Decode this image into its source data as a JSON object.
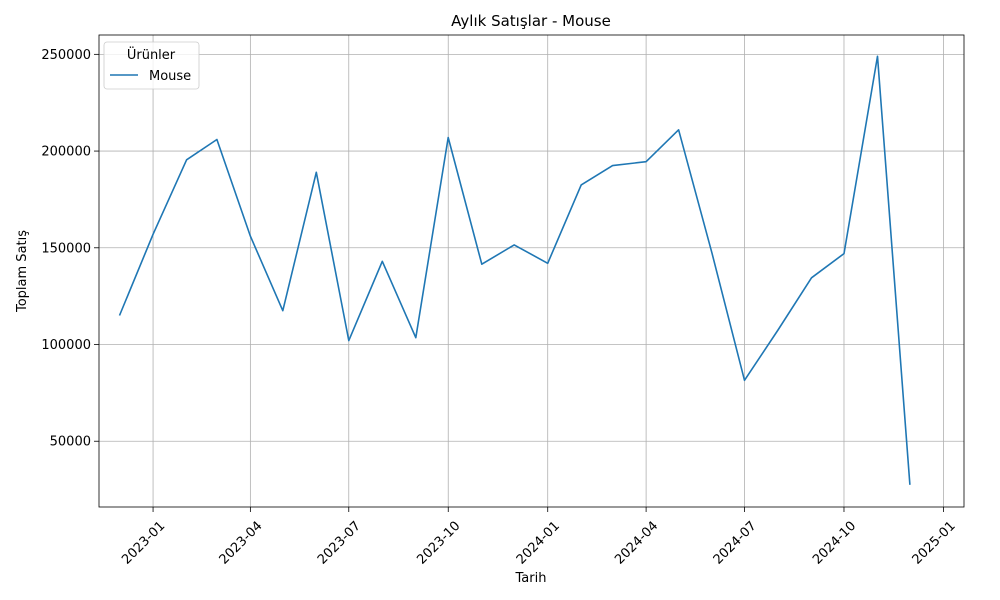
{
  "chart_data": {
    "type": "line",
    "title": "Aylık Satışlar - Mouse",
    "xlabel": "Tarih",
    "ylabel": "Toplam Satış",
    "grid": true,
    "legend": {
      "title": "Ürünler",
      "placement": "top-left"
    },
    "x_ticks": [
      "2023-01",
      "2023-04",
      "2023-07",
      "2023-10",
      "2024-01",
      "2024-04",
      "2024-07",
      "2024-10",
      "2025-01"
    ],
    "y_ticks": [
      50000,
      100000,
      150000,
      200000,
      250000
    ],
    "ylim": [
      16000,
      260000
    ],
    "xlim": [
      "2022-11-12",
      "2025-01-20"
    ],
    "series": [
      {
        "name": "Mouse",
        "color": "#1f77b4",
        "x": [
          "2022-12-01",
          "2023-01-01",
          "2023-02-01",
          "2023-03-01",
          "2023-04-01",
          "2023-05-01",
          "2023-06-01",
          "2023-07-01",
          "2023-08-01",
          "2023-09-01",
          "2023-10-01",
          "2023-11-01",
          "2023-12-01",
          "2024-01-01",
          "2024-02-01",
          "2024-03-01",
          "2024-04-01",
          "2024-05-01",
          "2024-06-01",
          "2024-07-01",
          "2024-08-01",
          "2024-09-01",
          "2024-10-01",
          "2024-11-01",
          "2024-12-01"
        ],
        "values": [
          115000,
          157000,
          195500,
          206000,
          156000,
          117500,
          189000,
          102000,
          143000,
          103500,
          207000,
          141500,
          151500,
          142000,
          182500,
          192500,
          194500,
          211000,
          147000,
          81500,
          107500,
          134500,
          147000,
          249000,
          27500
        ]
      }
    ]
  }
}
